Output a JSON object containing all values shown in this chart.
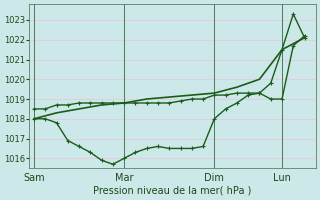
{
  "background_color": "#cce8e8",
  "grid_color": "#b0d8d8",
  "line_color": "#1a5c1a",
  "ylabel": "Pression niveau de la mer( hPa )",
  "ylim": [
    1015.5,
    1023.8
  ],
  "yticks": [
    1016,
    1017,
    1018,
    1019,
    1020,
    1021,
    1022,
    1023
  ],
  "day_labels": [
    "Sam",
    "Mar",
    "Dim",
    "Lun"
  ],
  "day_positions": [
    0,
    4,
    8,
    11
  ],
  "vline_positions": [
    0,
    4,
    8,
    11
  ],
  "line_flat_x": [
    0,
    0.5,
    1,
    1.5,
    2,
    2.5,
    3,
    3.5,
    4,
    4.5,
    5,
    5.5,
    6,
    6.5,
    7,
    7.5,
    8,
    8.5,
    9,
    9.5,
    10,
    10.5,
    11,
    11.5,
    12
  ],
  "line_flat_y": [
    1018.5,
    1018.5,
    1018.7,
    1018.7,
    1018.8,
    1018.8,
    1018.8,
    1018.8,
    1018.8,
    1018.8,
    1018.8,
    1018.8,
    1018.8,
    1018.9,
    1019.0,
    1019.0,
    1019.2,
    1019.2,
    1019.3,
    1019.3,
    1019.3,
    1019.0,
    1019.0,
    1021.7,
    1022.2
  ],
  "line_smooth_x": [
    0,
    1,
    2,
    3,
    4,
    5,
    6,
    7,
    8,
    9,
    10,
    11,
    12
  ],
  "line_smooth_y": [
    1018.0,
    1018.3,
    1018.5,
    1018.7,
    1018.8,
    1019.0,
    1019.1,
    1019.2,
    1019.3,
    1019.6,
    1020.0,
    1021.5,
    1022.1
  ],
  "line_zigzag_x": [
    0,
    0.5,
    1,
    1.5,
    2,
    2.5,
    3,
    3.5,
    4,
    4.5,
    5,
    5.5,
    6,
    6.5,
    7,
    7.5,
    8,
    8.5,
    9,
    9.5,
    10,
    10.5,
    11,
    11.5,
    12
  ],
  "line_zigzag_y": [
    1018.0,
    1018.0,
    1017.8,
    1016.9,
    1016.6,
    1016.3,
    1015.9,
    1015.7,
    1016.0,
    1016.3,
    1016.5,
    1016.6,
    1016.5,
    1016.5,
    1016.5,
    1016.6,
    1018.0,
    1018.5,
    1018.8,
    1019.2,
    1019.3,
    1019.8,
    1021.5,
    1023.3,
    1022.1
  ]
}
